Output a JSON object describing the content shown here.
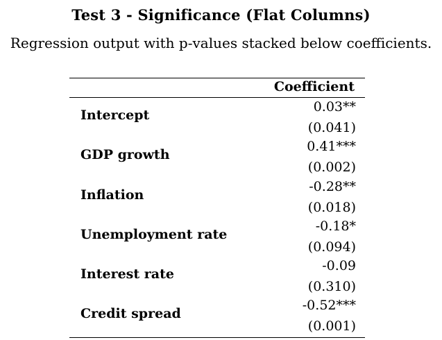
{
  "title": "Test 3 - Significance (Flat Columns)",
  "subtitle": "Regression output with p-values stacked below coefficients.",
  "table": {
    "column_header": "Coefficient",
    "rows": [
      {
        "name": "Intercept",
        "coef": "0.03**",
        "pval": "(0.041)"
      },
      {
        "name": "GDP growth",
        "coef": "0.41***",
        "pval": "(0.002)"
      },
      {
        "name": "Inflation",
        "coef": "-0.28**",
        "pval": "(0.018)"
      },
      {
        "name": "Unemployment rate",
        "coef": "-0.18*",
        "pval": "(0.094)"
      },
      {
        "name": "Interest rate",
        "coef": "-0.09",
        "pval": "(0.310)"
      },
      {
        "name": "Credit spread",
        "coef": "-0.52***",
        "pval": "(0.001)"
      }
    ]
  }
}
